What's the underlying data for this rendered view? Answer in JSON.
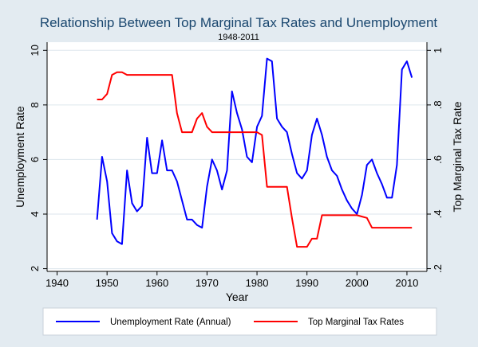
{
  "chart_data": {
    "type": "line",
    "title": "Relationship Between Top Marginal Tax Rates and Unemployment",
    "subtitle": "1948-2011",
    "xlabel": "Year",
    "ylabel": "Unemployment Rate",
    "y2label": "Top Marginal Tax Rate",
    "xlim": [
      1938,
      2014
    ],
    "ylim": [
      1.9,
      10.3
    ],
    "y2lim": [
      0.19,
      1.03
    ],
    "xticks": [
      1940,
      1950,
      1960,
      1970,
      1980,
      1990,
      2000,
      2010
    ],
    "xtick_labels": [
      "1940",
      "1950",
      "1960",
      "1970",
      "1980",
      "1990",
      "2000",
      "2010"
    ],
    "yticks": [
      2,
      4,
      6,
      8,
      10
    ],
    "ytick_labels": [
      "2",
      "4",
      "6",
      "8",
      "10"
    ],
    "y2ticks": [
      0.2,
      0.4,
      0.6,
      0.8,
      1.0
    ],
    "y2tick_labels": [
      ".2",
      ".4",
      ".6",
      ".8",
      "1"
    ],
    "grid": true,
    "legend_position": "bottom",
    "colors": {
      "plot_bg": "#ffffff",
      "outer_bg": "#e3ebf1",
      "title": "#1a476f",
      "grid": "#dde6ed",
      "axis": "#000000"
    },
    "series": [
      {
        "name": "Unemployment Rate (Annual)",
        "axis": "left",
        "color": "#0000ff",
        "x": [
          1948,
          1949,
          1950,
          1951,
          1952,
          1953,
          1954,
          1955,
          1956,
          1957,
          1958,
          1959,
          1960,
          1961,
          1962,
          1963,
          1964,
          1965,
          1966,
          1967,
          1968,
          1969,
          1970,
          1971,
          1972,
          1973,
          1974,
          1975,
          1976,
          1977,
          1978,
          1979,
          1980,
          1981,
          1982,
          1983,
          1984,
          1985,
          1986,
          1987,
          1988,
          1989,
          1990,
          1991,
          1992,
          1993,
          1994,
          1995,
          1996,
          1997,
          1998,
          1999,
          2000,
          2001,
          2002,
          2003,
          2004,
          2005,
          2006,
          2007,
          2008,
          2009,
          2010,
          2011
        ],
        "values": [
          3.8,
          6.1,
          5.2,
          3.3,
          3.0,
          2.9,
          5.6,
          4.4,
          4.1,
          4.3,
          6.8,
          5.5,
          5.5,
          6.7,
          5.6,
          5.6,
          5.2,
          4.5,
          3.8,
          3.8,
          3.6,
          3.5,
          5.0,
          6.0,
          5.6,
          4.9,
          5.6,
          8.5,
          7.7,
          7.1,
          6.1,
          5.9,
          7.2,
          7.6,
          9.7,
          9.6,
          7.5,
          7.2,
          7.0,
          6.2,
          5.5,
          5.3,
          5.6,
          6.9,
          7.5,
          6.9,
          6.1,
          5.6,
          5.4,
          4.9,
          4.5,
          4.2,
          4.0,
          4.7,
          5.8,
          6.0,
          5.5,
          5.1,
          4.6,
          4.6,
          5.8,
          9.3,
          9.6,
          9.0
        ]
      },
      {
        "name": "Top Marginal Tax Rates",
        "axis": "right",
        "color": "#ff0000",
        "x": [
          1948,
          1949,
          1950,
          1951,
          1952,
          1953,
          1954,
          1955,
          1956,
          1957,
          1958,
          1959,
          1960,
          1961,
          1962,
          1963,
          1964,
          1965,
          1966,
          1967,
          1968,
          1969,
          1970,
          1971,
          1972,
          1973,
          1974,
          1975,
          1976,
          1977,
          1978,
          1979,
          1980,
          1981,
          1982,
          1983,
          1984,
          1985,
          1986,
          1987,
          1988,
          1989,
          1990,
          1991,
          1992,
          1993,
          1994,
          1995,
          1996,
          1997,
          1998,
          1999,
          2000,
          2001,
          2002,
          2003,
          2004,
          2005,
          2006,
          2007,
          2008,
          2009,
          2010,
          2011
        ],
        "values": [
          0.82,
          0.82,
          0.84,
          0.91,
          0.92,
          0.92,
          0.91,
          0.91,
          0.91,
          0.91,
          0.91,
          0.91,
          0.91,
          0.91,
          0.91,
          0.91,
          0.77,
          0.7,
          0.7,
          0.7,
          0.75,
          0.77,
          0.72,
          0.7,
          0.7,
          0.7,
          0.7,
          0.7,
          0.7,
          0.7,
          0.7,
          0.7,
          0.7,
          0.69,
          0.5,
          0.5,
          0.5,
          0.5,
          0.5,
          0.385,
          0.28,
          0.28,
          0.28,
          0.31,
          0.31,
          0.396,
          0.396,
          0.396,
          0.396,
          0.396,
          0.396,
          0.396,
          0.396,
          0.391,
          0.386,
          0.35,
          0.35,
          0.35,
          0.35,
          0.35,
          0.35,
          0.35,
          0.35,
          0.35
        ]
      }
    ]
  }
}
